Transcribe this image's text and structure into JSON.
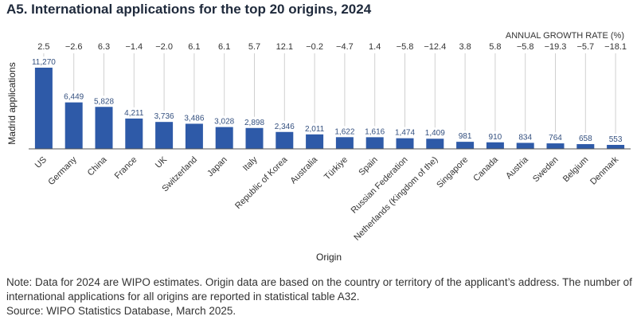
{
  "title": "A5. International applications for the top 20 origins, 2024",
  "chart_data": {
    "type": "bar",
    "title": "A5. International applications for the top 20 origins, 2024",
    "xlabel": "Origin",
    "ylabel": "Madrid applications",
    "growth_label": "ANNUAL GROWTH RATE (%)",
    "categories": [
      "US",
      "Germany",
      "China",
      "France",
      "UK",
      "Switzerland",
      "Japan",
      "Italy",
      "Republic of Korea",
      "Australia",
      "Türkiye",
      "Spain",
      "Russian Federation",
      "Netherlands (Kingdom of the)",
      "Singapore",
      "Canada",
      "Austria",
      "Sweden",
      "Belgium",
      "Denmark"
    ],
    "values": [
      11270,
      6449,
      5828,
      4211,
      3736,
      3486,
      3028,
      2898,
      2346,
      2011,
      1622,
      1616,
      1474,
      1409,
      981,
      910,
      834,
      764,
      658,
      553
    ],
    "value_labels": [
      "11,270",
      "6,449",
      "5,828",
      "4,211",
      "3,736",
      "3,486",
      "3,028",
      "2,898",
      "2,346",
      "2,011",
      "1,622",
      "1,616",
      "1,474",
      "1,409",
      "981",
      "910",
      "834",
      "764",
      "658",
      "553"
    ],
    "growth_rates": [
      "2.5",
      "−2.6",
      "6.3",
      "−1.4",
      "−2.0",
      "6.1",
      "6.1",
      "5.7",
      "12.1",
      "−0.2",
      "−4.7",
      "1.4",
      "−5.8",
      "−12.4",
      "3.8",
      "5.8",
      "−5.8",
      "−19.3",
      "−5.7",
      "−18.1"
    ],
    "ylim": [
      0,
      11270
    ],
    "grid": false,
    "colors": {
      "bar": "#2e5aa8",
      "value_label": "#34507f",
      "growth_line": "#d0d0d0",
      "axis": "#555555"
    }
  },
  "note": "Note: Data for 2024 are WIPO estimates. Origin data are based on the country or territory of the applicant’s address. The number of international applications for all origins are reported in statistical table A32.",
  "source": "Source: WIPO Statistics Database, March 2025."
}
